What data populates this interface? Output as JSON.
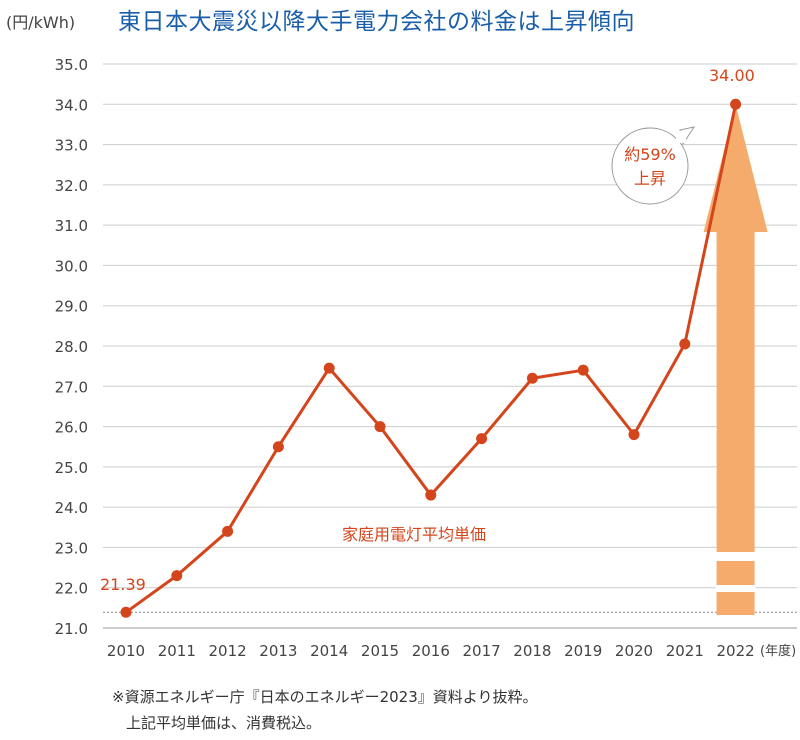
{
  "chart_data": {
    "type": "line",
    "title": "東日本大震災以降大手電力会社の料金は上昇傾向",
    "ylabel": "(円/kWh)",
    "xlabel": "(年度)",
    "ylim": [
      21.0,
      35.0
    ],
    "yticks": [
      "21.0",
      "22.0",
      "23.0",
      "24.0",
      "25.0",
      "26.0",
      "27.0",
      "28.0",
      "29.0",
      "30.0",
      "31.0",
      "32.0",
      "33.0",
      "34.0",
      "35.0"
    ],
    "categories": [
      "2010",
      "2011",
      "2012",
      "2013",
      "2014",
      "2015",
      "2016",
      "2017",
      "2018",
      "2019",
      "2020",
      "2021",
      "2022"
    ],
    "series": [
      {
        "name": "家庭用電灯平均単価",
        "values": [
          21.39,
          22.3,
          23.4,
          25.5,
          27.45,
          26.0,
          24.3,
          25.7,
          27.2,
          27.4,
          25.8,
          28.05,
          34.0
        ]
      }
    ],
    "data_labels": {
      "start": "21.39",
      "end": "34.00"
    },
    "annotation": {
      "line1": "約59%",
      "line2": "上昇"
    },
    "grid": true,
    "colors": {
      "line": "#d4451c",
      "arrow": "#f5ab6c",
      "title": "#1a5ea8",
      "grid": "#cccccc"
    }
  },
  "notes": {
    "line1": "※資源エネルギー庁『日本のエネルギー2023』資料より抜粋。",
    "line2": "上記平均単価は、消費税込。"
  }
}
